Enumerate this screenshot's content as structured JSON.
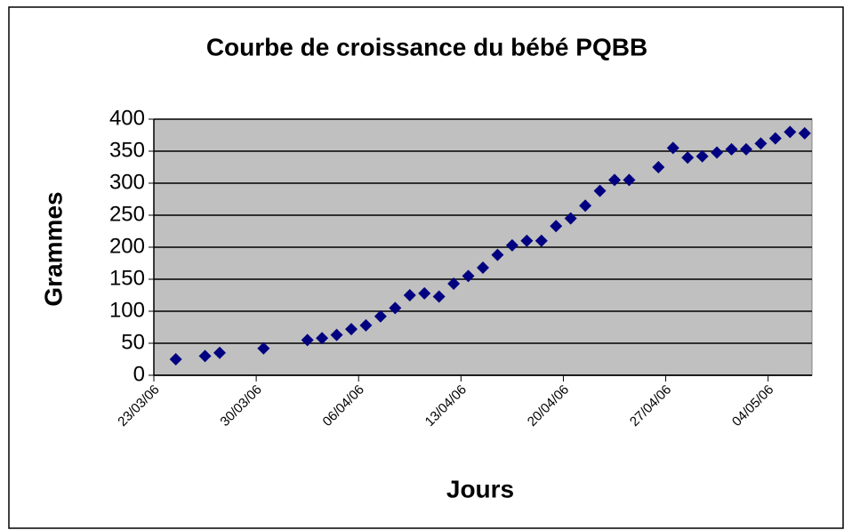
{
  "chart_data": {
    "type": "scatter",
    "title": "Courbe de croissance du bébé PQBB",
    "x_label": "Jours",
    "y_label": "Grammes",
    "color": "#000080",
    "grid": true,
    "x": [
      "24/03/06",
      "26/03/06",
      "27/03/06",
      "30/03/06",
      "02/04/06",
      "03/04/06",
      "04/04/06",
      "05/04/06",
      "06/04/06",
      "07/04/06",
      "08/04/06",
      "09/04/06",
      "10/04/06",
      "11/04/06",
      "12/04/06",
      "13/04/06",
      "14/04/06",
      "15/04/06",
      "16/04/06",
      "17/04/06",
      "18/04/06",
      "19/04/06",
      "20/04/06",
      "21/04/06",
      "22/04/06",
      "23/04/06",
      "24/04/06",
      "26/04/06",
      "27/04/06",
      "28/04/06",
      "29/04/06",
      "30/04/06",
      "01/05/06",
      "02/05/06",
      "03/05/06",
      "04/05/06",
      "05/05/06",
      "06/05/06"
    ],
    "values": [
      25,
      30,
      35,
      42,
      55,
      58,
      63,
      72,
      78,
      92,
      105,
      125,
      128,
      123,
      143,
      155,
      168,
      188,
      203,
      210,
      210,
      233,
      245,
      265,
      288,
      305,
      305,
      325,
      355,
      340,
      342,
      348,
      353,
      353,
      362,
      370,
      380,
      378
    ],
    "xlim": [
      "23/03/06",
      "07/05/06"
    ],
    "xticks": [
      "23/03/06",
      "30/03/06",
      "06/04/06",
      "13/04/06",
      "20/04/06",
      "27/04/06",
      "04/05/06"
    ],
    "ylim": [
      0,
      400
    ],
    "yticks": [
      0,
      50,
      100,
      150,
      200,
      250,
      300,
      350,
      400
    ]
  }
}
